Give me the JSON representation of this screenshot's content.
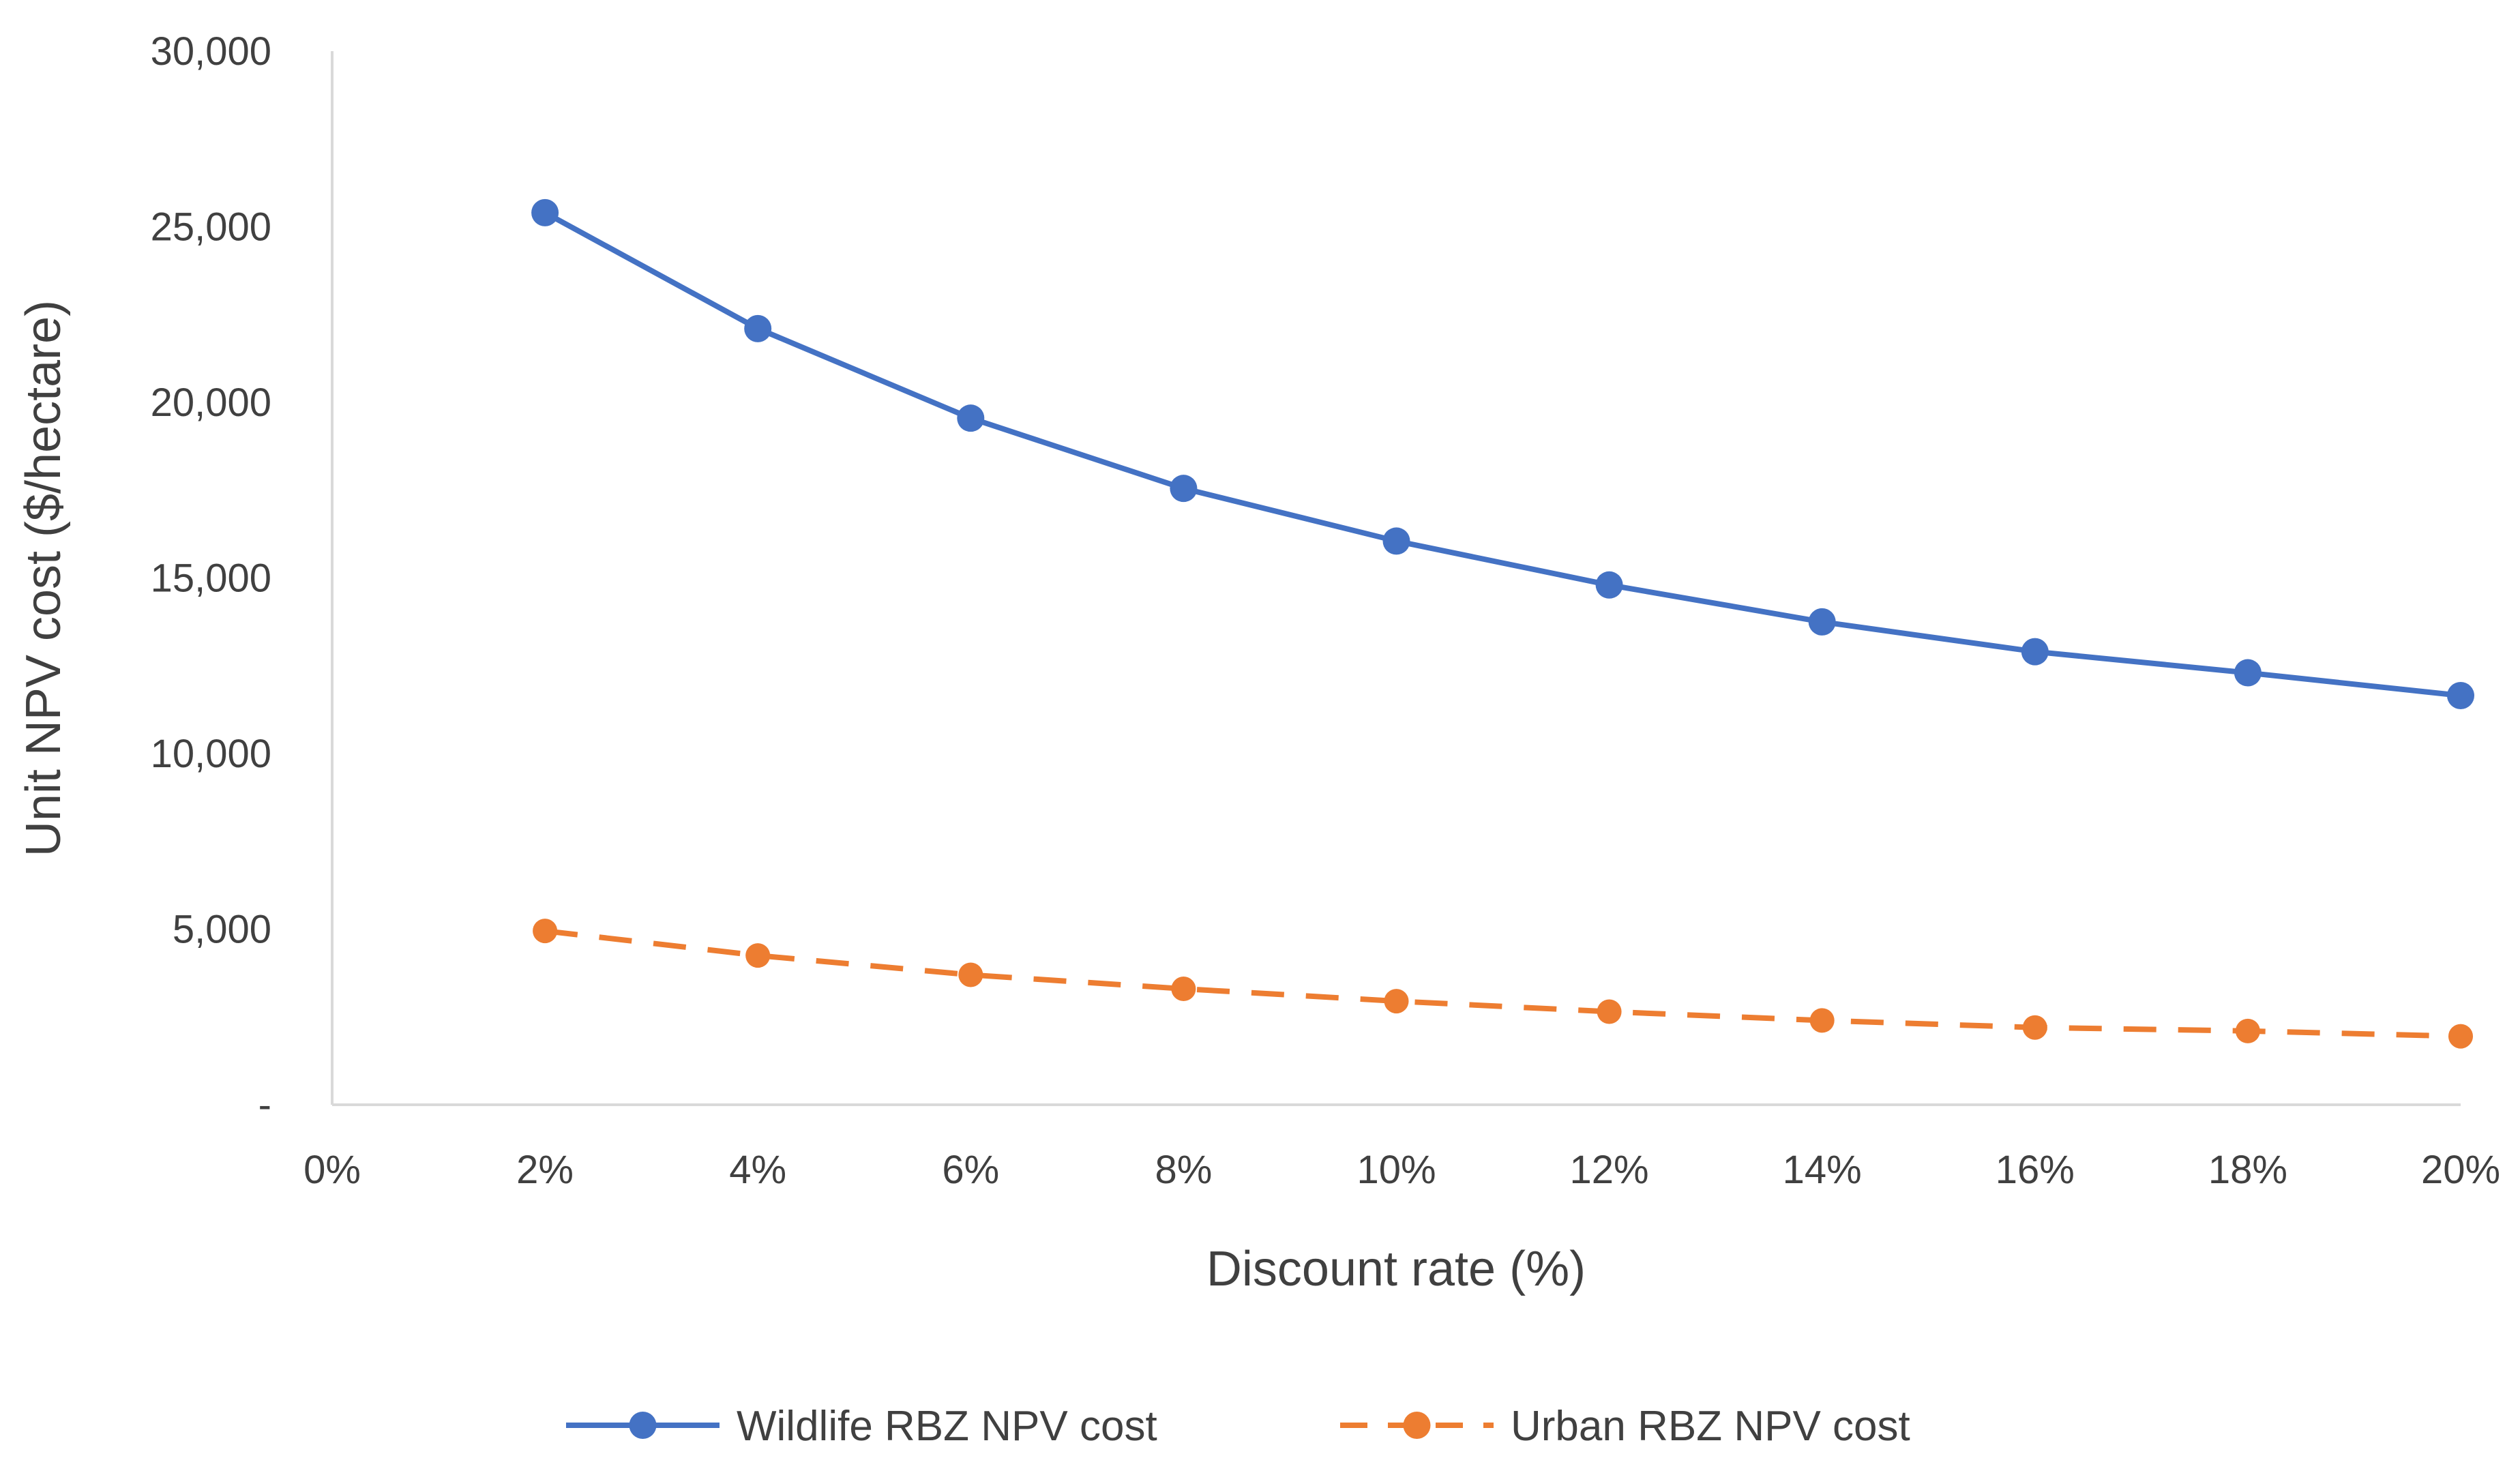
{
  "chart_data": {
    "type": "line",
    "title": "",
    "xlabel": "Discount rate (%)",
    "ylabel": "Unit NPV cost ($/hectare)",
    "x_ticks": [
      "0%",
      "2%",
      "4%",
      "6%",
      "8%",
      "10%",
      "12%",
      "14%",
      "16%",
      "18%",
      "20%"
    ],
    "x_tick_values": [
      0,
      2,
      4,
      6,
      8,
      10,
      12,
      14,
      16,
      18,
      20
    ],
    "y_ticks": [
      "-",
      "5,000",
      "10,000",
      "15,000",
      "20,000",
      "25,000",
      "30,000"
    ],
    "y_tick_values": [
      0,
      5000,
      10000,
      15000,
      20000,
      25000,
      30000
    ],
    "xlim": [
      0,
      20
    ],
    "ylim": [
      0,
      30000
    ],
    "grid": false,
    "legend_position": "bottom",
    "x": [
      2,
      4,
      6,
      8,
      10,
      12,
      14,
      16,
      18,
      20
    ],
    "series": [
      {
        "name": "Wildlife RBZ NPV cost",
        "color": "#4472C4",
        "line_style": "solid",
        "marker": "circle",
        "values": [
          25400,
          22100,
          19550,
          17550,
          16050,
          14800,
          13750,
          12900,
          12300,
          11650
        ]
      },
      {
        "name": "Urban RBZ NPV cost",
        "color": "#ED7D31",
        "line_style": "dashed",
        "marker": "circle",
        "values": [
          4950,
          4250,
          3700,
          3300,
          2950,
          2650,
          2400,
          2200,
          2100,
          1950
        ]
      }
    ]
  }
}
